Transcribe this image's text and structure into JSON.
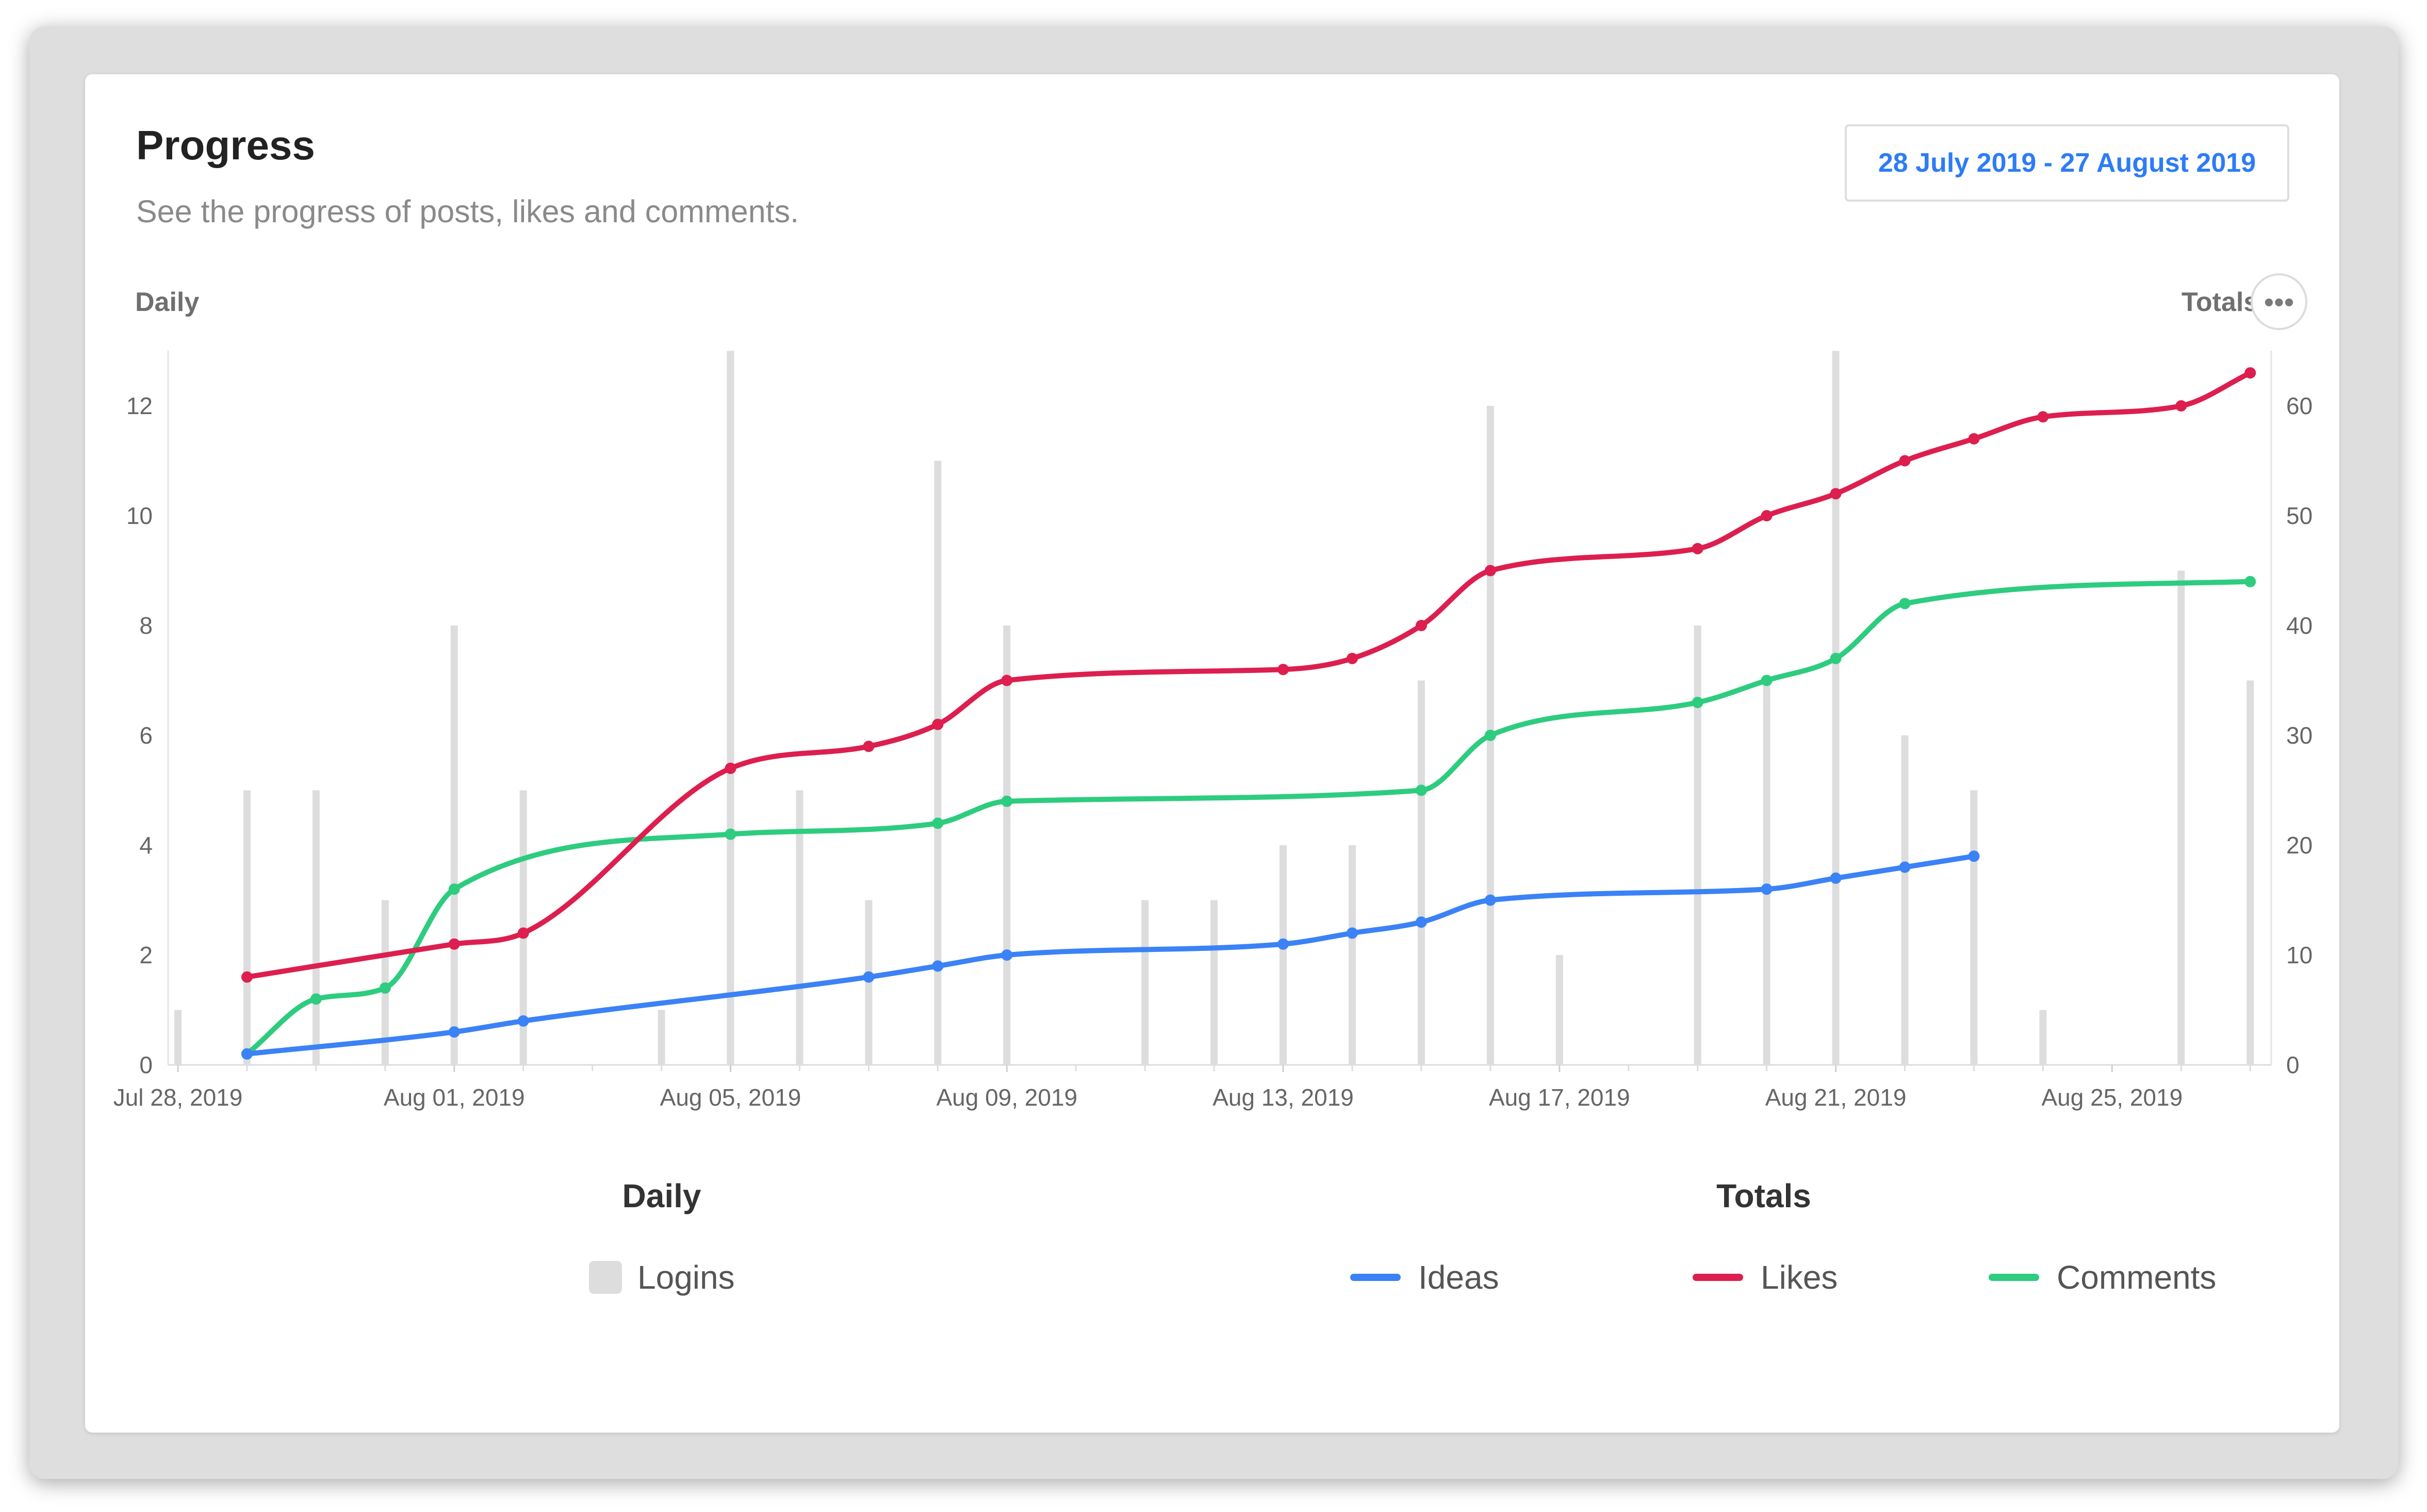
{
  "header": {
    "title": "Progress",
    "subtitle": "See the progress of posts, likes and comments.",
    "date_range": "28 July 2019 - 27 August 2019",
    "left_axis_heading": "Daily",
    "right_axis_heading": "Totals",
    "more_icon": "•••"
  },
  "legend": {
    "daily_title": "Daily",
    "totals_title": "Totals",
    "items": {
      "logins": "Logins",
      "ideas": "Ideas",
      "likes": "Likes",
      "comments": "Comments"
    }
  },
  "colors": {
    "logins": "#dddddd",
    "ideas": "#3b82f6",
    "likes": "#dc1f4e",
    "comments": "#2ecc7f",
    "accent": "#2d7cf6"
  },
  "chart_data": {
    "type": "bar+line",
    "x_tick_labels": [
      "Jul 28, 2019",
      "Aug 01, 2019",
      "Aug 05, 2019",
      "Aug 09, 2019",
      "Aug 13, 2019",
      "Aug 17, 2019",
      "Aug 21, 2019",
      "Aug 25, 2019"
    ],
    "x_tick_days": [
      0,
      4,
      8,
      12,
      16,
      20,
      24,
      28
    ],
    "x_range": [
      0,
      30.2
    ],
    "left_axis": {
      "ylim": [
        0,
        13
      ],
      "ticks": [
        0,
        2,
        4,
        6,
        8,
        10,
        12
      ]
    },
    "right_axis": {
      "ylim": [
        0,
        65
      ],
      "ticks": [
        0,
        10,
        20,
        30,
        40,
        50,
        60
      ]
    },
    "grid": false,
    "legend_position": "bottom",
    "bars": {
      "name": "Logins",
      "axis": "left",
      "points": [
        {
          "day": 0,
          "value": 1
        },
        {
          "day": 1,
          "value": 5
        },
        {
          "day": 2,
          "value": 5
        },
        {
          "day": 3,
          "value": 3
        },
        {
          "day": 4,
          "value": 8
        },
        {
          "day": 5,
          "value": 5
        },
        {
          "day": 7,
          "value": 1
        },
        {
          "day": 8,
          "value": 13
        },
        {
          "day": 9,
          "value": 5
        },
        {
          "day": 10,
          "value": 3
        },
        {
          "day": 11,
          "value": 11
        },
        {
          "day": 12,
          "value": 8
        },
        {
          "day": 14,
          "value": 3
        },
        {
          "day": 15,
          "value": 3
        },
        {
          "day": 16,
          "value": 4
        },
        {
          "day": 17,
          "value": 4
        },
        {
          "day": 18,
          "value": 7
        },
        {
          "day": 19,
          "value": 12
        },
        {
          "day": 20,
          "value": 2
        },
        {
          "day": 22,
          "value": 8
        },
        {
          "day": 23,
          "value": 7
        },
        {
          "day": 24,
          "value": 13
        },
        {
          "day": 25,
          "value": 6
        },
        {
          "day": 26,
          "value": 5
        },
        {
          "day": 27,
          "value": 1
        },
        {
          "day": 29,
          "value": 9
        },
        {
          "day": 30,
          "value": 7
        }
      ]
    },
    "series": [
      {
        "name": "Ideas",
        "axis": "right",
        "points": [
          {
            "day": 1,
            "value": 1
          },
          {
            "day": 4,
            "value": 3
          },
          {
            "day": 5,
            "value": 4
          },
          {
            "day": 10,
            "value": 8
          },
          {
            "day": 11,
            "value": 9
          },
          {
            "day": 12,
            "value": 10
          },
          {
            "day": 16,
            "value": 11
          },
          {
            "day": 17,
            "value": 12
          },
          {
            "day": 18,
            "value": 13
          },
          {
            "day": 19,
            "value": 15
          },
          {
            "day": 23,
            "value": 16
          },
          {
            "day": 24,
            "value": 17
          },
          {
            "day": 25,
            "value": 18
          },
          {
            "day": 26,
            "value": 19
          }
        ]
      },
      {
        "name": "Likes",
        "axis": "right",
        "points": [
          {
            "day": 1,
            "value": 8
          },
          {
            "day": 4,
            "value": 11
          },
          {
            "day": 5,
            "value": 12
          },
          {
            "day": 8,
            "value": 27
          },
          {
            "day": 10,
            "value": 29
          },
          {
            "day": 11,
            "value": 31
          },
          {
            "day": 12,
            "value": 35
          },
          {
            "day": 16,
            "value": 36
          },
          {
            "day": 17,
            "value": 37
          },
          {
            "day": 18,
            "value": 40
          },
          {
            "day": 19,
            "value": 45
          },
          {
            "day": 22,
            "value": 47
          },
          {
            "day": 23,
            "value": 50
          },
          {
            "day": 24,
            "value": 52
          },
          {
            "day": 25,
            "value": 55
          },
          {
            "day": 26,
            "value": 57
          },
          {
            "day": 27,
            "value": 59
          },
          {
            "day": 29,
            "value": 60
          },
          {
            "day": 30,
            "value": 63
          }
        ]
      },
      {
        "name": "Comments",
        "axis": "right",
        "points": [
          {
            "day": 1,
            "value": 1
          },
          {
            "day": 2,
            "value": 6
          },
          {
            "day": 3,
            "value": 7
          },
          {
            "day": 4,
            "value": 16
          },
          {
            "day": 8,
            "value": 21
          },
          {
            "day": 11,
            "value": 22
          },
          {
            "day": 12,
            "value": 24
          },
          {
            "day": 18,
            "value": 25
          },
          {
            "day": 19,
            "value": 30
          },
          {
            "day": 22,
            "value": 33
          },
          {
            "day": 23,
            "value": 35
          },
          {
            "day": 24,
            "value": 37
          },
          {
            "day": 25,
            "value": 42
          },
          {
            "day": 30,
            "value": 44
          }
        ]
      }
    ]
  }
}
